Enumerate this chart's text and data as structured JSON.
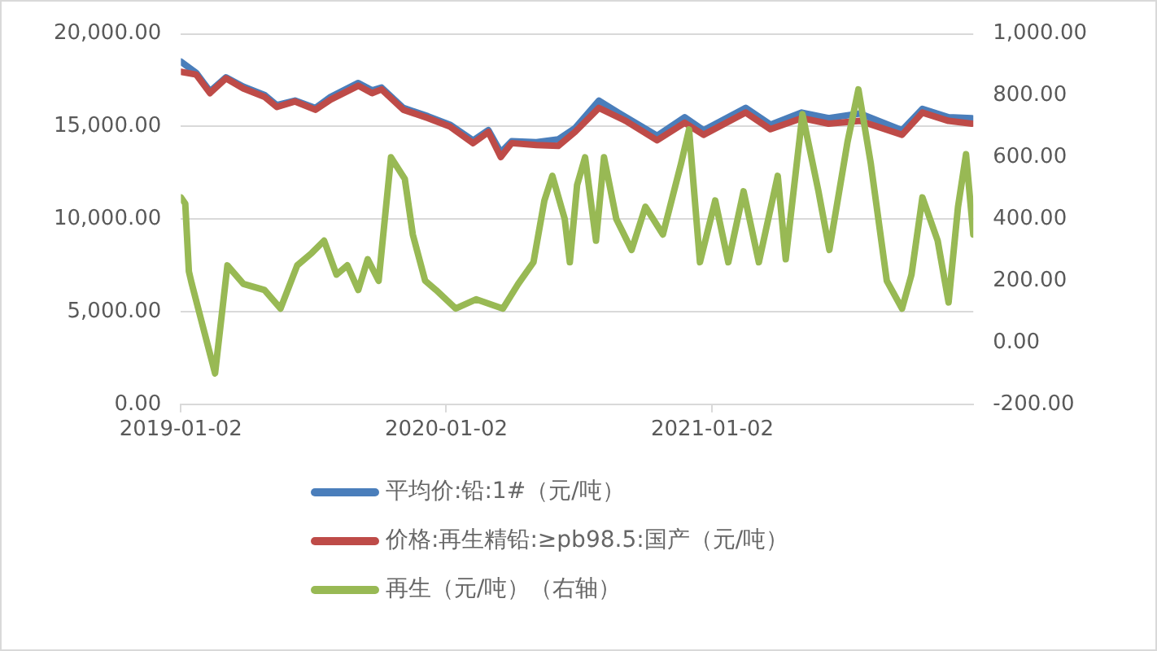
{
  "chart_data": {
    "type": "line",
    "xlim": [
      "2019-01-02",
      "2021-12-27"
    ],
    "xticks": [
      {
        "value": "2019-01-02",
        "label": "2019-01-02"
      },
      {
        "value": "2020-01-02",
        "label": "2020-01-02"
      },
      {
        "value": "2021-01-02",
        "label": "2021-01-02"
      }
    ],
    "ylim": [
      0,
      20000
    ],
    "yticks": [
      {
        "value": 0,
        "label": "0.00"
      },
      {
        "value": 5000,
        "label": "5,000.00"
      },
      {
        "value": 10000,
        "label": "10,000.00"
      },
      {
        "value": 15000,
        "label": "15,000.00"
      },
      {
        "value": 20000,
        "label": "20,000.00"
      }
    ],
    "y2lim": [
      -200,
      1000
    ],
    "y2ticks": [
      {
        "value": -200,
        "label": "-200.00"
      },
      {
        "value": 0,
        "label": "0.00"
      },
      {
        "value": 200,
        "label": "200.00"
      },
      {
        "value": 400,
        "label": "400.00"
      },
      {
        "value": 600,
        "label": "600.00"
      },
      {
        "value": 800,
        "label": "800.00"
      },
      {
        "value": 1000,
        "label": "1,000.00"
      }
    ],
    "grid": "y",
    "legend": "bottom",
    "marker": "none",
    "line_style": "solid",
    "series": [
      {
        "name": "平均价:铅:1#（元/吨）",
        "color": "#4a7ebb",
        "x": [
          "2019-01-02",
          "2019-01-23",
          "2019-02-11",
          "2019-03-05",
          "2019-03-29",
          "2019-04-27",
          "2019-05-14",
          "2019-06-08",
          "2019-07-06",
          "2019-07-27",
          "2019-09-03",
          "2019-09-22",
          "2019-10-05",
          "2019-11-04",
          "2019-12-08",
          "2020-01-07",
          "2020-02-08",
          "2020-02-29",
          "2020-03-17",
          "2020-04-01",
          "2020-05-05",
          "2020-06-04",
          "2020-06-27",
          "2020-07-30",
          "2020-09-05",
          "2020-10-18",
          "2020-11-25",
          "2020-12-21",
          "2021-02-17",
          "2021-03-23",
          "2021-05-05",
          "2021-06-11",
          "2021-07-24",
          "2021-09-20",
          "2021-10-18",
          "2021-11-23",
          "2021-12-25"
        ],
        "values": [
          18500,
          17900,
          16900,
          17650,
          17150,
          16700,
          16150,
          16400,
          16000,
          16600,
          17350,
          16950,
          17100,
          16000,
          15550,
          15100,
          14250,
          14800,
          13600,
          14200,
          14150,
          14300,
          14900,
          16400,
          15500,
          14500,
          15500,
          14800,
          16000,
          15100,
          15750,
          15450,
          15700,
          14800,
          15950,
          15500,
          15450
        ]
      },
      {
        "name": "价格:再生精铅:≥pb98.5:国产（元/吨）",
        "color": "#be4b48",
        "x": [
          "2019-01-02",
          "2019-01-23",
          "2019-02-11",
          "2019-03-05",
          "2019-03-29",
          "2019-04-27",
          "2019-05-14",
          "2019-06-08",
          "2019-07-06",
          "2019-07-27",
          "2019-09-03",
          "2019-09-22",
          "2019-10-05",
          "2019-11-04",
          "2019-12-08",
          "2020-01-07",
          "2020-02-08",
          "2020-02-29",
          "2020-03-17",
          "2020-04-01",
          "2020-05-05",
          "2020-06-04",
          "2020-06-27",
          "2020-07-30",
          "2020-09-05",
          "2020-10-18",
          "2020-11-25",
          "2020-12-21",
          "2021-02-17",
          "2021-03-23",
          "2021-05-05",
          "2021-06-11",
          "2021-07-24",
          "2021-09-20",
          "2021-10-18",
          "2021-11-23",
          "2021-12-25"
        ],
        "values": [
          17950,
          17800,
          16800,
          17600,
          17050,
          16600,
          16050,
          16350,
          15900,
          16450,
          17200,
          16800,
          17000,
          15900,
          15450,
          15000,
          14100,
          14700,
          13350,
          14100,
          14000,
          13950,
          14700,
          16000,
          15300,
          14250,
          15200,
          14550,
          15750,
          14850,
          15450,
          15150,
          15300,
          14550,
          15750,
          15300,
          15150
        ]
      },
      {
        "name": "再生（元/吨）（右轴）",
        "color": "#98b954",
        "axis": "y2",
        "x": [
          "2019-01-02",
          "2019-01-08",
          "2019-01-13",
          "2019-01-17",
          "2019-02-18",
          "2019-03-07",
          "2019-03-29",
          "2019-04-27",
          "2019-05-19",
          "2019-06-11",
          "2019-07-01",
          "2019-07-18",
          "2019-08-04",
          "2019-08-19",
          "2019-09-03",
          "2019-09-16",
          "2019-10-01",
          "2019-10-18",
          "2019-11-06",
          "2019-11-17",
          "2019-12-04",
          "2019-12-19",
          "2020-01-15",
          "2020-02-12",
          "2020-03-20",
          "2020-04-10",
          "2020-05-01",
          "2020-05-16",
          "2020-05-27",
          "2020-06-13",
          "2020-06-20",
          "2020-06-30",
          "2020-07-11",
          "2020-07-26",
          "2020-08-06",
          "2020-08-23",
          "2020-09-13",
          "2020-10-02",
          "2020-10-26",
          "2020-11-20",
          "2020-12-01",
          "2020-12-16",
          "2021-01-06",
          "2021-01-24",
          "2021-02-14",
          "2021-03-07",
          "2021-04-02",
          "2021-04-13",
          "2021-05-06",
          "2021-05-28",
          "2021-06-12",
          "2021-07-07",
          "2021-07-22",
          "2021-08-08",
          "2021-08-30",
          "2021-09-20",
          "2021-10-03",
          "2021-10-18",
          "2021-11-08",
          "2021-11-23",
          "2021-12-06",
          "2021-12-17",
          "2021-12-27"
        ],
        "values": [
          470,
          450,
          230,
          190,
          -100,
          250,
          190,
          170,
          110,
          250,
          290,
          330,
          220,
          250,
          170,
          270,
          200,
          600,
          530,
          350,
          200,
          170,
          110,
          140,
          110,
          190,
          260,
          460,
          540,
          400,
          260,
          510,
          600,
          330,
          600,
          400,
          300,
          440,
          350,
          580,
          690,
          260,
          460,
          260,
          490,
          260,
          540,
          270,
          740,
          490,
          300,
          650,
          820,
          580,
          200,
          110,
          220,
          470,
          330,
          130,
          440,
          610,
          350
        ]
      }
    ]
  }
}
